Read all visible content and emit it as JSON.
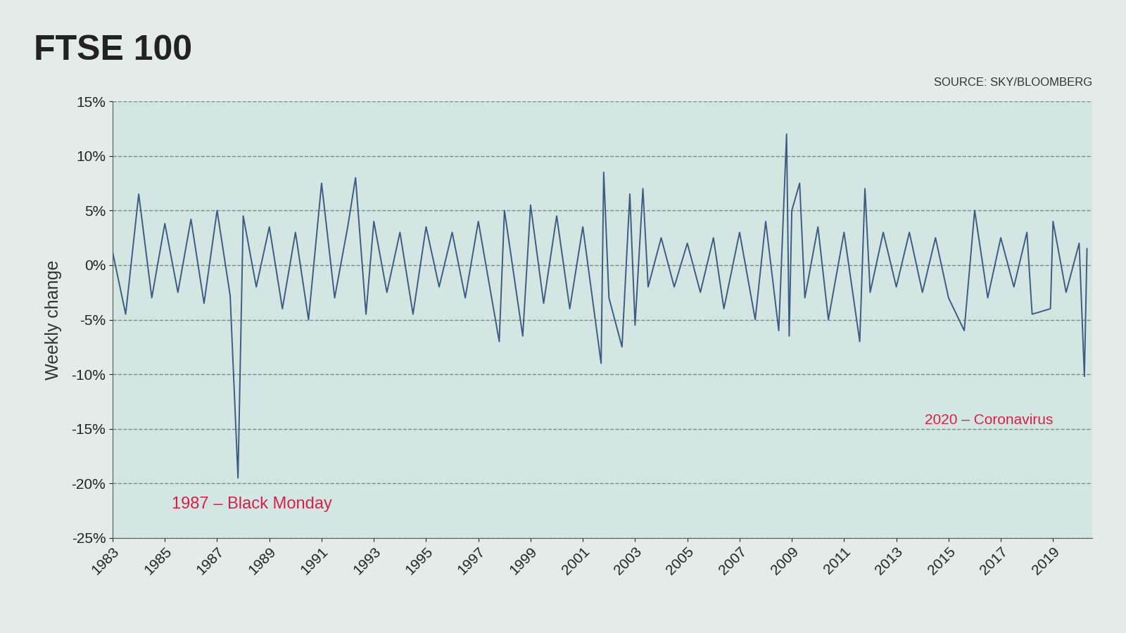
{
  "chart_data": {
    "type": "line",
    "title": "FTSE 100",
    "subtitle": "SOURCE: SKY/BLOOMBERG",
    "y_label": "Weekly change",
    "annotations": [
      "1987 – Black Monday",
      "2020 – Coronavirus"
    ],
    "color": "#3d5c85",
    "grid": true,
    "line_style": "solid",
    "x": [
      1983.0,
      1983.5,
      1984.0,
      1984.5,
      1985.0,
      1985.5,
      1986.0,
      1986.5,
      1987.0,
      1987.5,
      1987.8,
      1988.0,
      1988.5,
      1989.0,
      1989.5,
      1990.0,
      1990.5,
      1991.0,
      1991.5,
      1992.0,
      1992.3,
      1992.7,
      1993.0,
      1993.5,
      1994.0,
      1994.5,
      1995.0,
      1995.5,
      1996.0,
      1996.5,
      1997.0,
      1997.8,
      1998.0,
      1998.7,
      1999.0,
      1999.5,
      2000.0,
      2000.5,
      2001.0,
      2001.7,
      2001.8,
      2002.0,
      2002.5,
      2002.8,
      2003.0,
      2003.3,
      2003.5,
      2004.0,
      2004.5,
      2005.0,
      2005.5,
      2006.0,
      2006.4,
      2007.0,
      2007.6,
      2008.0,
      2008.5,
      2008.8,
      2008.9,
      2009.0,
      2009.3,
      2009.5,
      2010.0,
      2010.4,
      2011.0,
      2011.6,
      2011.8,
      2012.0,
      2012.5,
      2013.0,
      2013.5,
      2014.0,
      2014.5,
      2015.0,
      2015.6,
      2016.0,
      2016.5,
      2017.0,
      2017.5,
      2018.0,
      2018.2,
      2018.9,
      2019.0,
      2019.5,
      2020.0,
      2020.2,
      2020.3
    ],
    "values": [
      1.2,
      -4.5,
      6.5,
      -3.0,
      3.8,
      -2.5,
      4.2,
      -3.5,
      5.0,
      -2.8,
      -19.5,
      4.5,
      -2.0,
      3.5,
      -4.0,
      3.0,
      -5.0,
      7.5,
      -3.0,
      3.5,
      8.0,
      -4.5,
      4.0,
      -2.5,
      3.0,
      -4.5,
      3.5,
      -2.0,
      3.0,
      -3.0,
      4.0,
      -7.0,
      5.0,
      -6.5,
      5.5,
      -3.5,
      4.5,
      -4.0,
      3.5,
      -9.0,
      8.5,
      -3.0,
      -7.5,
      6.5,
      -5.5,
      7.0,
      -2.0,
      2.5,
      -2.0,
      2.0,
      -2.5,
      2.5,
      -4.0,
      3.0,
      -5.0,
      4.0,
      -6.0,
      12.0,
      -6.5,
      5.0,
      7.5,
      -3.0,
      3.5,
      -5.0,
      3.0,
      -7.0,
      7.0,
      -2.5,
      3.0,
      -2.0,
      3.0,
      -2.5,
      2.5,
      -3.0,
      -6.0,
      5.0,
      -3.0,
      2.5,
      -2.0,
      3.0,
      -4.5,
      -4.0,
      4.0,
      -2.5,
      2.0,
      -10.2,
      1.5
    ],
    "xlim": [
      1983,
      2020.5
    ],
    "xticks": [
      1983,
      1985,
      1987,
      1989,
      1991,
      1993,
      1995,
      1997,
      1999,
      2001,
      2003,
      2005,
      2007,
      2009,
      2011,
      2013,
      2015,
      2017,
      2019
    ],
    "ylim": [
      -25,
      15
    ],
    "yticks": [
      {
        "value": -25,
        "label": "-25%"
      },
      {
        "value": -20,
        "label": "-20%"
      },
      {
        "value": -15,
        "label": "-15%"
      },
      {
        "value": -10,
        "label": "-10%"
      },
      {
        "value": -5,
        "label": "-5%"
      },
      {
        "value": 0,
        "label": "0%"
      },
      {
        "value": 5,
        "label": "5%"
      },
      {
        "value": 10,
        "label": "10%"
      },
      {
        "value": 15,
        "label": "15%"
      }
    ]
  }
}
